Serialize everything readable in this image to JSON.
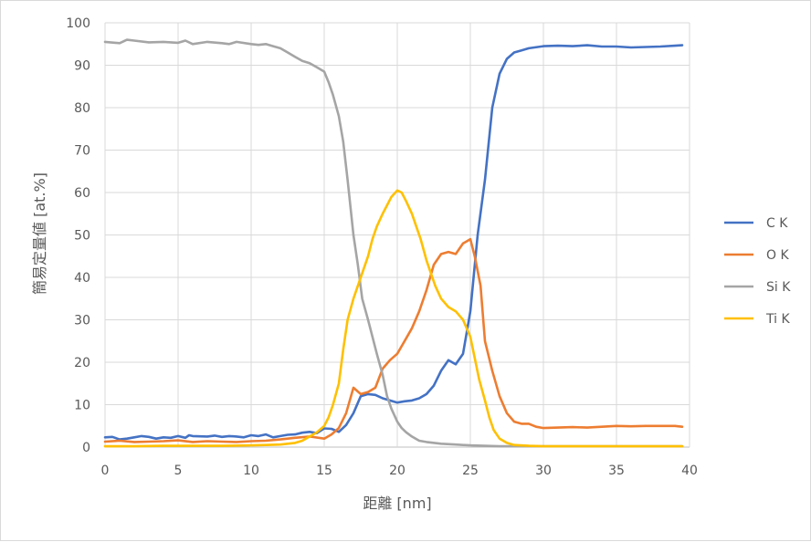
{
  "chart_data": {
    "type": "line",
    "title": "",
    "xlabel": "距離 [nm]",
    "ylabel": "簡易定量値 [at.%]",
    "xlim": [
      0,
      40
    ],
    "ylim": [
      0,
      100
    ],
    "xticks": [
      0,
      5,
      10,
      15,
      20,
      25,
      30,
      35,
      40
    ],
    "yticks": [
      0,
      10,
      20,
      30,
      40,
      50,
      60,
      70,
      80,
      90,
      100
    ],
    "grid": true,
    "legend_position": "right",
    "series": [
      {
        "name": "C K",
        "color": "#4472C4",
        "points": [
          [
            0,
            2.3
          ],
          [
            0.5,
            2.4
          ],
          [
            1,
            1.8
          ],
          [
            1.5,
            2.0
          ],
          [
            2,
            2.3
          ],
          [
            2.5,
            2.6
          ],
          [
            3,
            2.4
          ],
          [
            3.5,
            2.0
          ],
          [
            4,
            2.3
          ],
          [
            4.5,
            2.2
          ],
          [
            5,
            2.6
          ],
          [
            5.5,
            2.2
          ],
          [
            5.75,
            2.8
          ],
          [
            6,
            2.6
          ],
          [
            7,
            2.5
          ],
          [
            7.5,
            2.7
          ],
          [
            8,
            2.4
          ],
          [
            8.5,
            2.6
          ],
          [
            9,
            2.5
          ],
          [
            9.5,
            2.3
          ],
          [
            10,
            2.8
          ],
          [
            10.5,
            2.6
          ],
          [
            11,
            3.0
          ],
          [
            11.5,
            2.3
          ],
          [
            12,
            2.6
          ],
          [
            12.5,
            2.9
          ],
          [
            13,
            3.0
          ],
          [
            13.5,
            3.4
          ],
          [
            14,
            3.6
          ],
          [
            14.5,
            3.3
          ],
          [
            15,
            4.4
          ],
          [
            15.5,
            4.3
          ],
          [
            16,
            3.6
          ],
          [
            16.5,
            5.2
          ],
          [
            17,
            8.0
          ],
          [
            17.5,
            12.0
          ],
          [
            18,
            12.5
          ],
          [
            18.5,
            12.3
          ],
          [
            19,
            11.5
          ],
          [
            19.5,
            11.0
          ],
          [
            20,
            10.5
          ],
          [
            20.5,
            10.8
          ],
          [
            21,
            11.0
          ],
          [
            21.5,
            11.5
          ],
          [
            22,
            12.5
          ],
          [
            22.5,
            14.5
          ],
          [
            23,
            18.0
          ],
          [
            23.5,
            20.5
          ],
          [
            24,
            19.5
          ],
          [
            24.5,
            22.0
          ],
          [
            25,
            32.0
          ],
          [
            25.5,
            50.0
          ],
          [
            26,
            63.0
          ],
          [
            26.5,
            80.0
          ],
          [
            27,
            88.0
          ],
          [
            27.5,
            91.5
          ],
          [
            28,
            93.0
          ],
          [
            28.5,
            93.5
          ],
          [
            29,
            94.0
          ],
          [
            30,
            94.5
          ],
          [
            31,
            94.6
          ],
          [
            32,
            94.5
          ],
          [
            33,
            94.7
          ],
          [
            34,
            94.4
          ],
          [
            35,
            94.4
          ],
          [
            36,
            94.2
          ],
          [
            37,
            94.3
          ],
          [
            38,
            94.4
          ],
          [
            39,
            94.6
          ],
          [
            39.5,
            94.7
          ]
        ]
      },
      {
        "name": "O K",
        "color": "#ED7D31",
        "points": [
          [
            0,
            1.3
          ],
          [
            1,
            1.5
          ],
          [
            2,
            1.2
          ],
          [
            3,
            1.3
          ],
          [
            4,
            1.4
          ],
          [
            5,
            1.6
          ],
          [
            6,
            1.2
          ],
          [
            7,
            1.4
          ],
          [
            8,
            1.3
          ],
          [
            9,
            1.2
          ],
          [
            10,
            1.4
          ],
          [
            11,
            1.5
          ],
          [
            12,
            1.8
          ],
          [
            13,
            2.2
          ],
          [
            14,
            2.5
          ],
          [
            15,
            2.0
          ],
          [
            15.5,
            3.0
          ],
          [
            16,
            4.5
          ],
          [
            16.5,
            8.0
          ],
          [
            17,
            14.0
          ],
          [
            17.5,
            12.5
          ],
          [
            18,
            13.0
          ],
          [
            18.5,
            14.0
          ],
          [
            19,
            18.5
          ],
          [
            19.5,
            20.5
          ],
          [
            20,
            22.0
          ],
          [
            20.5,
            25.0
          ],
          [
            21,
            28.0
          ],
          [
            21.5,
            32.0
          ],
          [
            22,
            37.0
          ],
          [
            22.5,
            43.0
          ],
          [
            23,
            45.5
          ],
          [
            23.5,
            46.0
          ],
          [
            24,
            45.5
          ],
          [
            24.5,
            48.0
          ],
          [
            25,
            49.0
          ],
          [
            25.3,
            45.0
          ],
          [
            25.7,
            38.0
          ],
          [
            26,
            25.0
          ],
          [
            26.5,
            18.0
          ],
          [
            27,
            12.0
          ],
          [
            27.5,
            8.0
          ],
          [
            28,
            6.0
          ],
          [
            28.5,
            5.5
          ],
          [
            29,
            5.5
          ],
          [
            29.5,
            4.8
          ],
          [
            30,
            4.5
          ],
          [
            31,
            4.6
          ],
          [
            32,
            4.7
          ],
          [
            33,
            4.6
          ],
          [
            34,
            4.8
          ],
          [
            35,
            5.0
          ],
          [
            36,
            4.9
          ],
          [
            37,
            5.0
          ],
          [
            38,
            5.0
          ],
          [
            39,
            5.0
          ],
          [
            39.5,
            4.8
          ]
        ]
      },
      {
        "name": "Si K",
        "color": "#A5A5A5",
        "points": [
          [
            0,
            95.5
          ],
          [
            1,
            95.2
          ],
          [
            1.5,
            96.0
          ],
          [
            2,
            95.8
          ],
          [
            3,
            95.4
          ],
          [
            4,
            95.5
          ],
          [
            5,
            95.3
          ],
          [
            5.5,
            95.8
          ],
          [
            6,
            95.0
          ],
          [
            7,
            95.5
          ],
          [
            8,
            95.2
          ],
          [
            8.5,
            95.0
          ],
          [
            9,
            95.5
          ],
          [
            10,
            95.0
          ],
          [
            10.5,
            94.8
          ],
          [
            11,
            95.0
          ],
          [
            11.5,
            94.5
          ],
          [
            12,
            94.0
          ],
          [
            12.5,
            93.0
          ],
          [
            13,
            92.0
          ],
          [
            13.5,
            91.0
          ],
          [
            14,
            90.5
          ],
          [
            14.5,
            89.5
          ],
          [
            15,
            88.5
          ],
          [
            15.3,
            86.0
          ],
          [
            15.6,
            83.0
          ],
          [
            16,
            78.0
          ],
          [
            16.3,
            72.0
          ],
          [
            16.6,
            63.0
          ],
          [
            17,
            50.0
          ],
          [
            17.3,
            43.0
          ],
          [
            17.6,
            35.0
          ],
          [
            18,
            30.0
          ],
          [
            18.3,
            26.0
          ],
          [
            18.6,
            22.0
          ],
          [
            19,
            17.0
          ],
          [
            19.3,
            12.0
          ],
          [
            19.6,
            9.0
          ],
          [
            20,
            6.0
          ],
          [
            20.3,
            4.5
          ],
          [
            20.6,
            3.5
          ],
          [
            21,
            2.5
          ],
          [
            21.5,
            1.5
          ],
          [
            22,
            1.2
          ],
          [
            23,
            0.8
          ],
          [
            24,
            0.6
          ],
          [
            25,
            0.4
          ],
          [
            26,
            0.3
          ],
          [
            27,
            0.2
          ],
          [
            28,
            0.2
          ],
          [
            30,
            0.2
          ],
          [
            32,
            0.2
          ],
          [
            35,
            0.2
          ],
          [
            38,
            0.2
          ],
          [
            39.5,
            0.2
          ]
        ]
      },
      {
        "name": "Ti K",
        "color": "#FFC000",
        "points": [
          [
            0,
            0.2
          ],
          [
            2,
            0.2
          ],
          [
            4,
            0.3
          ],
          [
            6,
            0.3
          ],
          [
            8,
            0.3
          ],
          [
            10,
            0.4
          ],
          [
            11,
            0.5
          ],
          [
            12,
            0.6
          ],
          [
            13,
            1.0
          ],
          [
            13.5,
            1.5
          ],
          [
            14,
            2.5
          ],
          [
            14.5,
            3.5
          ],
          [
            15,
            5.0
          ],
          [
            15.3,
            7.0
          ],
          [
            15.6,
            10.0
          ],
          [
            16,
            15.0
          ],
          [
            16.3,
            23.0
          ],
          [
            16.6,
            30.0
          ],
          [
            17,
            35.0
          ],
          [
            17.3,
            38.0
          ],
          [
            17.6,
            41.0
          ],
          [
            18,
            45.0
          ],
          [
            18.3,
            49.0
          ],
          [
            18.6,
            52.0
          ],
          [
            19,
            55.0
          ],
          [
            19.3,
            57.0
          ],
          [
            19.6,
            59.0
          ],
          [
            20,
            60.5
          ],
          [
            20.3,
            60.0
          ],
          [
            20.6,
            58.0
          ],
          [
            21,
            55.0
          ],
          [
            21.3,
            52.0
          ],
          [
            21.6,
            49.0
          ],
          [
            22,
            44.0
          ],
          [
            22.3,
            41.0
          ],
          [
            22.6,
            38.0
          ],
          [
            23,
            35.0
          ],
          [
            23.5,
            33.0
          ],
          [
            24,
            32.0
          ],
          [
            24.5,
            30.0
          ],
          [
            25,
            26.0
          ],
          [
            25.3,
            21.0
          ],
          [
            25.6,
            16.0
          ],
          [
            26,
            11.0
          ],
          [
            26.3,
            7.0
          ],
          [
            26.6,
            4.0
          ],
          [
            27,
            2.0
          ],
          [
            27.5,
            1.0
          ],
          [
            28,
            0.5
          ],
          [
            29,
            0.3
          ],
          [
            30,
            0.2
          ],
          [
            32,
            0.2
          ],
          [
            35,
            0.2
          ],
          [
            38,
            0.2
          ],
          [
            39.5,
            0.2
          ]
        ]
      }
    ]
  }
}
